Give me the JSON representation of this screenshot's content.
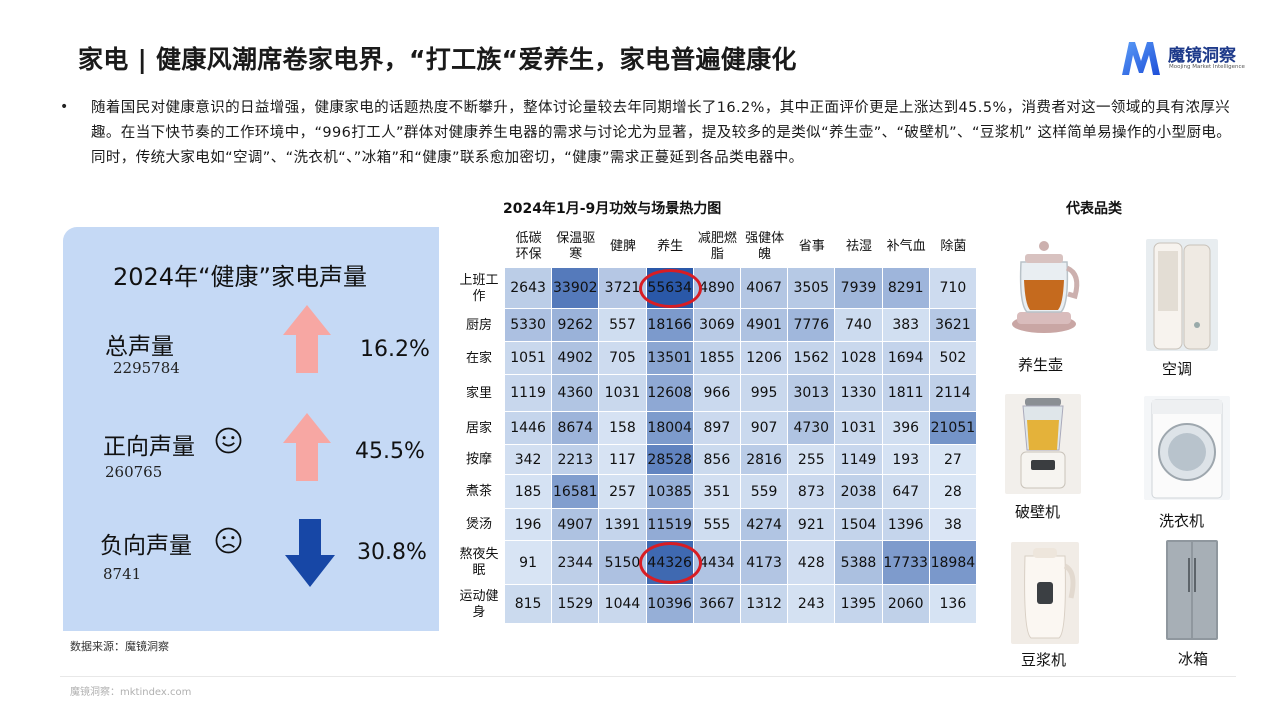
{
  "title": "家电 | 健康风潮席卷家电界，“打工族“爱养生，家电普遍健康化",
  "brand": {
    "name": "魔镜洞察",
    "subtitle": "Moojing Market Intelligence",
    "color": "#2f6fe0"
  },
  "bullet": "•",
  "paragraph": "随着国民对健康意识的日益增强，健康家电的话题热度不断攀升，整体讨论量较去年同期增长了16.2%，其中正面评价更是上涨达到45.5%，消费者对这一领域的具有浓厚兴趣。在当下快节奏的工作环境中，“996打工人”群体对健康养生电器的需求与讨论尤为显著，提及较多的是类似“养生壶”、“破壁机”、“豆浆机” 这样简单易操作的小型厨电。同时，传统大家电如“空调”、“洗衣机“、”冰箱”和“健康”联系愈加密切，“健康”需求正蔓延到各品类电器中。",
  "summary": {
    "title": "2024年“健康”家电声量",
    "items": [
      {
        "label": "总声量",
        "value": "2295784",
        "pct": "16.2%",
        "direction": "up",
        "icon": "up-arrow-icon"
      },
      {
        "label": "正向声量",
        "value": "260765",
        "pct": "45.5%",
        "direction": "up",
        "icon": "smile-face-icon"
      },
      {
        "label": "负向声量",
        "value": "8741",
        "pct": "30.8%",
        "direction": "down",
        "icon": "frown-face-icon"
      }
    ],
    "colors": {
      "panel": "#c5d9f5",
      "up_arrow": "#f7a7a3",
      "down_arrow": "#1747a6"
    }
  },
  "heatmap": {
    "title": "2024年1月-9月功效与场景热力图",
    "columns": [
      "低碳环保",
      "保温驱寒",
      "健脾",
      "养生",
      "减肥燃脂",
      "强健体魄",
      "省事",
      "祛湿",
      "补气血",
      "除菌"
    ],
    "column_lines": [
      [
        "低碳",
        "环保"
      ],
      [
        "保温驱",
        "寒"
      ],
      [
        "健脾"
      ],
      [
        "养生"
      ],
      [
        "减肥燃",
        "脂"
      ],
      [
        "强健体",
        "魄"
      ],
      [
        "省事"
      ],
      [
        "祛湿"
      ],
      [
        "补气血"
      ],
      [
        "除菌"
      ]
    ],
    "rows": [
      "上班工作",
      "厨房",
      "在家",
      "家里",
      "居家",
      "按摩",
      "煮茶",
      "煲汤",
      "熬夜失眠",
      "运动健身"
    ],
    "row_lines": [
      [
        "上班工",
        "作"
      ],
      [
        "厨房"
      ],
      [
        "在家"
      ],
      [
        "家里"
      ],
      [
        "居家"
      ],
      [
        "按摩"
      ],
      [
        "煮茶"
      ],
      [
        "煲汤"
      ],
      [
        "熬夜失",
        "眠"
      ],
      [
        "运动健",
        "身"
      ]
    ],
    "values": [
      [
        2643,
        33902,
        3721,
        55634,
        4890,
        4067,
        3505,
        7939,
        8291,
        710
      ],
      [
        5330,
        9262,
        557,
        18166,
        3069,
        4901,
        7776,
        740,
        383,
        3621
      ],
      [
        1051,
        4902,
        705,
        13501,
        1855,
        1206,
        1562,
        1028,
        1694,
        502
      ],
      [
        1119,
        4360,
        1031,
        12608,
        966,
        995,
        3013,
        1330,
        1811,
        2114
      ],
      [
        1446,
        8674,
        158,
        18004,
        897,
        907,
        4730,
        1031,
        396,
        21051
      ],
      [
        342,
        2213,
        117,
        28528,
        856,
        2816,
        255,
        1149,
        193,
        27
      ],
      [
        185,
        16581,
        257,
        10385,
        351,
        559,
        873,
        2038,
        647,
        28
      ],
      [
        196,
        4907,
        1391,
        11519,
        555,
        4274,
        921,
        1504,
        1396,
        38
      ],
      [
        91,
        2344,
        5150,
        44326,
        4434,
        4173,
        428,
        5388,
        17733,
        18984
      ],
      [
        815,
        1529,
        1044,
        10396,
        3667,
        1312,
        243,
        1395,
        2060,
        136
      ]
    ],
    "highlighted": [
      [
        0,
        3
      ],
      [
        8,
        3
      ]
    ],
    "color_scale": {
      "low": "#dde8f6",
      "high": "#2a58a8",
      "highlight_ring": "#d81d24"
    }
  },
  "products": {
    "title": "代表品类",
    "items": [
      {
        "label": "养生壶",
        "icon": "health-kettle-icon"
      },
      {
        "label": "空调",
        "icon": "air-conditioner-icon"
      },
      {
        "label": "破壁机",
        "icon": "blender-icon"
      },
      {
        "label": "洗衣机",
        "icon": "washing-machine-icon"
      },
      {
        "label": "豆浆机",
        "icon": "soymilk-maker-icon"
      },
      {
        "label": "冰箱",
        "icon": "refrigerator-icon"
      }
    ]
  },
  "source": "数据来源：魔镜洞察",
  "footer": "魔镜洞察：mktindex.com"
}
